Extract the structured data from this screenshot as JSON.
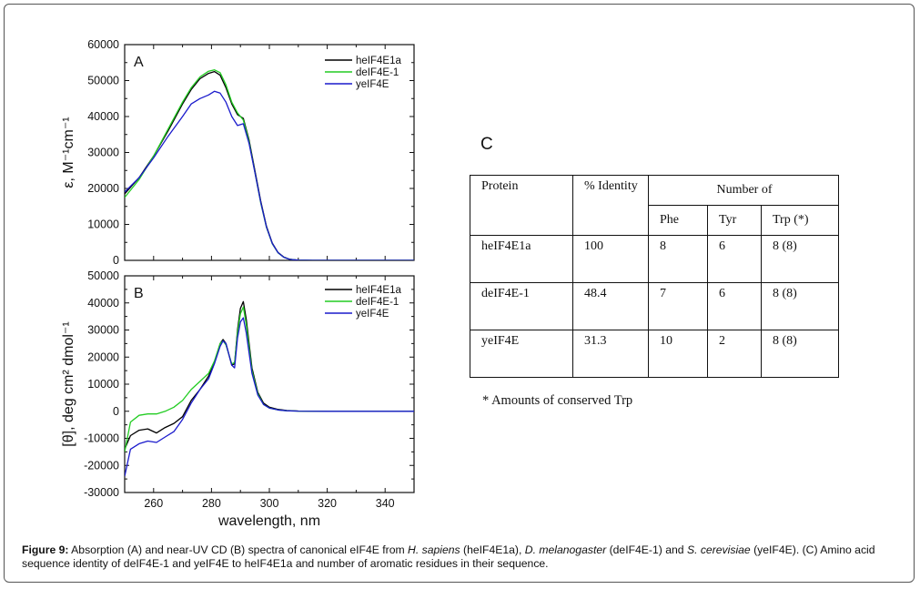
{
  "chart_data": [
    {
      "type": "line",
      "panel_label": "A",
      "title": "",
      "xlabel": "",
      "ylabel": "ε, M⁻¹cm⁻¹",
      "xlim": [
        250,
        350
      ],
      "ylim": [
        0,
        60000
      ],
      "x_ticks": [
        260,
        280,
        300,
        320,
        340
      ],
      "y_ticks": [
        0,
        10000,
        20000,
        30000,
        40000,
        50000,
        60000
      ],
      "legend_position": "top-right",
      "series": [
        {
          "name": "heIF4E1a",
          "color": "#000000",
          "x": [
            250,
            255,
            260,
            265,
            270,
            273,
            276,
            279,
            281,
            283,
            285,
            287,
            289,
            291,
            293,
            295,
            297,
            299,
            301,
            303,
            305,
            307,
            310,
            315,
            320,
            330,
            340,
            350
          ],
          "y": [
            18500,
            23000,
            29000,
            36000,
            43500,
            47500,
            50500,
            52000,
            52500,
            51500,
            48000,
            43500,
            40500,
            39500,
            33500,
            25000,
            16500,
            9500,
            4800,
            2200,
            900,
            300,
            60,
            0,
            0,
            0,
            0,
            0
          ]
        },
        {
          "name": "deIF4E-1",
          "color": "#22cc22",
          "x": [
            250,
            255,
            260,
            265,
            270,
            273,
            276,
            279,
            281,
            283,
            285,
            287,
            289,
            291,
            293,
            295,
            297,
            299,
            301,
            303,
            305,
            307,
            310,
            315,
            320,
            330,
            340,
            350
          ],
          "y": [
            17500,
            22500,
            29000,
            36500,
            44000,
            48000,
            51000,
            52600,
            53000,
            52200,
            48800,
            44000,
            41000,
            39000,
            33000,
            24500,
            16000,
            9200,
            4600,
            2100,
            850,
            280,
            50,
            0,
            0,
            0,
            0,
            0
          ]
        },
        {
          "name": "yeIF4E",
          "color": "#1a1acc",
          "x": [
            250,
            255,
            260,
            265,
            270,
            273,
            276,
            279,
            281,
            283,
            285,
            287,
            289,
            291,
            293,
            295,
            297,
            299,
            301,
            303,
            305,
            307,
            310,
            315,
            320,
            330,
            340,
            350
          ],
          "y": [
            19000,
            23000,
            28500,
            34500,
            40000,
            43500,
            45000,
            46000,
            47000,
            46500,
            44000,
            40000,
            37500,
            38000,
            32500,
            24500,
            16200,
            9300,
            4700,
            2150,
            870,
            290,
            55,
            0,
            0,
            0,
            0,
            0
          ]
        }
      ]
    },
    {
      "type": "line",
      "panel_label": "B",
      "title": "",
      "xlabel": "wavelength, nm",
      "ylabel": "[θ], deg cm² dmol⁻¹",
      "xlim": [
        250,
        350
      ],
      "ylim": [
        -30000,
        50000
      ],
      "x_ticks": [
        260,
        280,
        300,
        320,
        340
      ],
      "y_ticks": [
        -30000,
        -20000,
        -10000,
        0,
        10000,
        20000,
        30000,
        40000,
        50000
      ],
      "legend_position": "top-right",
      "series": [
        {
          "name": "heIF4E1a",
          "color": "#000000",
          "x": [
            250,
            252,
            255,
            258,
            261,
            264,
            267,
            270,
            273,
            276,
            279,
            281,
            283,
            284,
            285,
            287,
            288,
            289,
            290,
            291,
            292,
            294,
            296,
            298,
            300,
            303,
            306,
            310,
            320,
            330,
            340,
            350
          ],
          "y": [
            -14000,
            -9000,
            -7000,
            -6500,
            -8000,
            -6000,
            -4500,
            -2000,
            4000,
            8000,
            13000,
            18000,
            25000,
            26500,
            25000,
            17000,
            17500,
            30000,
            38000,
            40500,
            34000,
            16000,
            7000,
            3000,
            1500,
            700,
            300,
            100,
            0,
            0,
            0,
            0
          ]
        },
        {
          "name": "deIF4E-1",
          "color": "#22cc22",
          "x": [
            250,
            252,
            255,
            258,
            261,
            264,
            267,
            270,
            273,
            276,
            279,
            281,
            283,
            284,
            285,
            287,
            288,
            289,
            290,
            291,
            292,
            294,
            296,
            298,
            300,
            303,
            306,
            310,
            320,
            330,
            340,
            350
          ],
          "y": [
            -15000,
            -4000,
            -1500,
            -1000,
            -1000,
            0,
            1500,
            4000,
            8000,
            11000,
            14000,
            18500,
            25000,
            26000,
            24500,
            17500,
            18000,
            29000,
            36000,
            38500,
            32000,
            15000,
            6500,
            2500,
            1200,
            500,
            200,
            50,
            0,
            0,
            0,
            0
          ]
        },
        {
          "name": "yeIF4E",
          "color": "#1a1acc",
          "x": [
            250,
            252,
            255,
            258,
            261,
            264,
            267,
            270,
            273,
            276,
            279,
            281,
            283,
            284,
            285,
            287,
            288,
            289,
            290,
            291,
            292,
            294,
            296,
            298,
            300,
            303,
            306,
            310,
            320,
            330,
            340,
            350
          ],
          "y": [
            -24000,
            -14000,
            -12000,
            -11000,
            -11500,
            -9500,
            -7500,
            -3000,
            3000,
            8000,
            12000,
            17500,
            24000,
            26000,
            25000,
            17000,
            16000,
            27000,
            33000,
            34500,
            29000,
            14000,
            6000,
            2500,
            1200,
            500,
            200,
            50,
            0,
            0,
            0,
            0
          ]
        }
      ]
    }
  ],
  "panel_c": {
    "label": "C",
    "headers": {
      "protein": "Protein",
      "identity": "% Identity",
      "number_of": "Number of",
      "phe": "Phe",
      "tyr": "Tyr",
      "trp": "Trp (*)"
    },
    "rows": [
      {
        "protein": "heIF4E1a",
        "identity": "100",
        "phe": "8",
        "tyr": "6",
        "trp": "8 (8)"
      },
      {
        "protein": "deIF4E-1",
        "identity": "48.4",
        "phe": "7",
        "tyr": "6",
        "trp": "8 (8)"
      },
      {
        "protein": "yeIF4E",
        "identity": "31.3",
        "phe": "10",
        "tyr": "2",
        "trp": "8 (8)"
      }
    ],
    "footnote": "* Amounts of conserved Trp"
  },
  "caption": {
    "label": "Figure 9:",
    "part1": " Absorption (A) and near-UV CD (B) spectra of canonical eIF4E from ",
    "species1": "H. sapiens",
    "part2": " (heIF4E1a), ",
    "species2": "D. melanogaster",
    "part3": " (deIF4E-1) and ",
    "species3": "S. cerevisiae",
    "part4": " (yeIF4E). (C) Amino acid sequence identity of deIF4E-1 and yeIF4E to heIF4E1a and number of aromatic residues in their sequence."
  }
}
